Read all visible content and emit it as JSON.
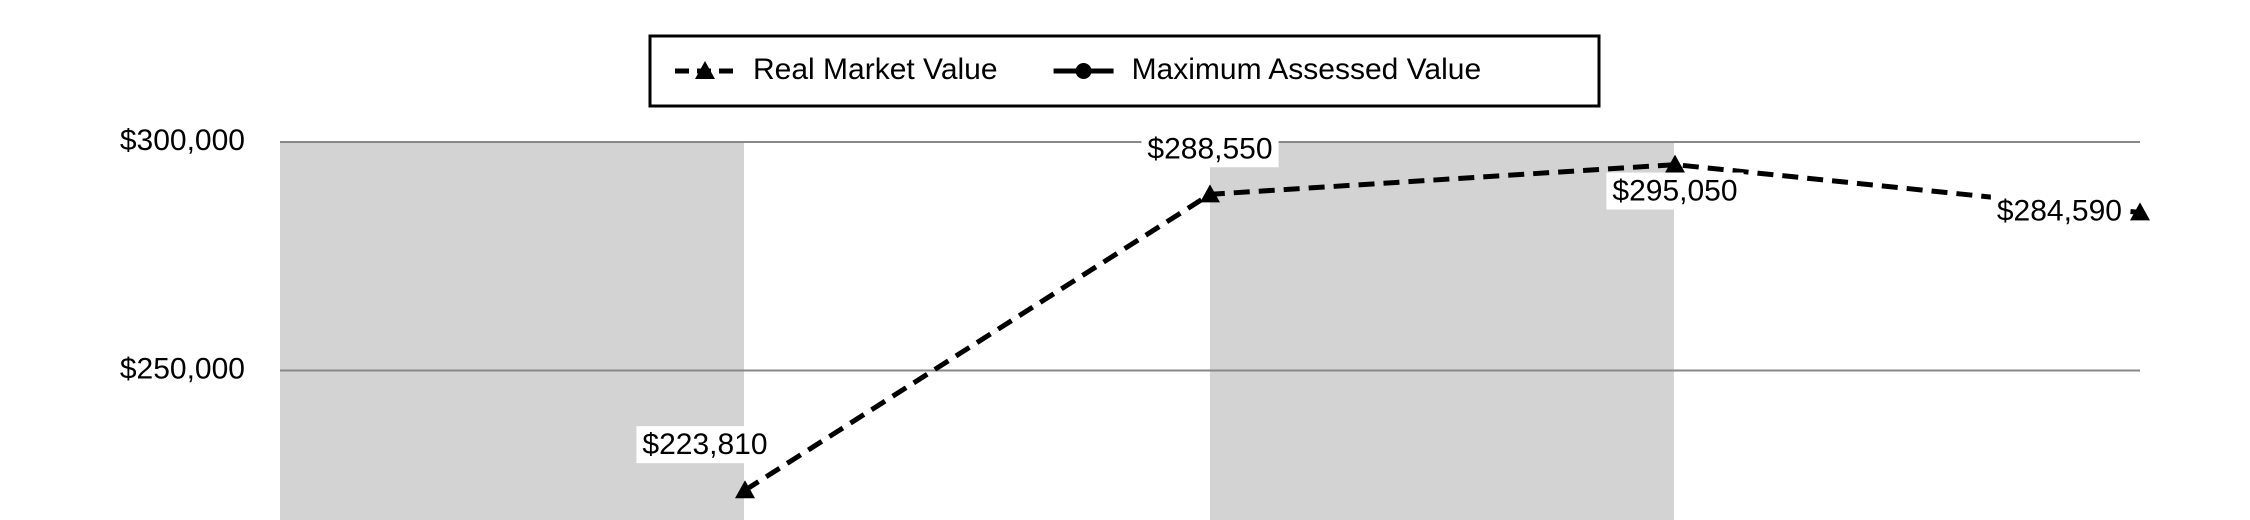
{
  "chart_data": {
    "type": "line",
    "categories": [
      null,
      null,
      null,
      null,
      null
    ],
    "series": [
      {
        "name": "Real Market Value",
        "color": "#000000",
        "marker": "triangle",
        "dashed": true,
        "values": [
          null,
          223810,
          288550,
          295050,
          284590
        ],
        "value_labels": [
          null,
          "$223,810",
          "$288,550",
          "$295,050",
          "$284,590"
        ]
      },
      {
        "name": "Maximum Assessed Value",
        "color": "#000000",
        "marker": "circle",
        "dashed": false,
        "values": [
          null,
          null,
          null,
          null,
          null
        ]
      }
    ],
    "ylim": [
      217300,
      300000
    ],
    "yticks": [
      {
        "value": 250000,
        "label": "$250,000"
      },
      {
        "value": 300000,
        "label": "$300,000"
      }
    ],
    "grid": true,
    "legend": "top"
  }
}
